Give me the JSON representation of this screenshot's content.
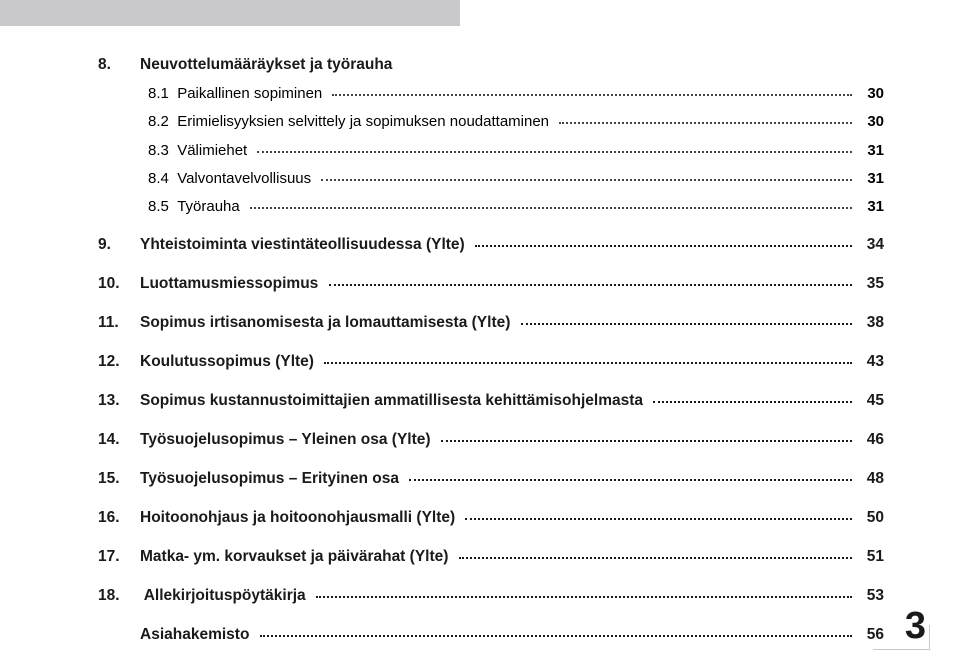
{
  "toc": [
    {
      "type": "head",
      "num": "8.",
      "title": "Neuvottelumääräykset ja työrauha",
      "page": ""
    },
    {
      "type": "sub",
      "num": "8.1",
      "title": "Paikallinen sopiminen",
      "page": "30"
    },
    {
      "type": "sub",
      "num": "8.2",
      "title": "Erimielisyyksien selvittely ja sopimuksen noudattaminen",
      "page": "30"
    },
    {
      "type": "sub",
      "num": "8.3",
      "title": "Välimiehet",
      "page": "31"
    },
    {
      "type": "sub",
      "num": "8.4",
      "title": "Valvontavelvollisuus",
      "page": "31"
    },
    {
      "type": "sub",
      "num": "8.5",
      "title": "Työrauha",
      "page": "31"
    },
    {
      "type": "gap"
    },
    {
      "type": "head",
      "num": "9.",
      "title": "Yhteistoiminta viestintäteollisuudessa (Ylte)",
      "page": "34"
    },
    {
      "type": "gap"
    },
    {
      "type": "head",
      "num": "10.",
      "title": "Luottamusmiessopimus",
      "page": "35"
    },
    {
      "type": "gap"
    },
    {
      "type": "head",
      "num": "11.",
      "title": "Sopimus irtisanomisesta ja lomauttamisesta (Ylte)",
      "page": "38"
    },
    {
      "type": "gap"
    },
    {
      "type": "head",
      "num": "12.",
      "title": "Koulutussopimus (Ylte)",
      "page": "43"
    },
    {
      "type": "gap"
    },
    {
      "type": "head",
      "num": "13.",
      "title": "Sopimus kustannustoimittajien ammatillisesta kehittämisohjelmasta",
      "page": "45"
    },
    {
      "type": "gap"
    },
    {
      "type": "head",
      "num": "14.",
      "title": "Työsuojelusopimus – Yleinen osa (Ylte)",
      "page": "46"
    },
    {
      "type": "gap"
    },
    {
      "type": "head",
      "num": "15.",
      "title": "Työsuojelusopimus – Erityinen osa",
      "page": "48"
    },
    {
      "type": "gap"
    },
    {
      "type": "head",
      "num": "16.",
      "title": "Hoitoonohjaus ja hoitoonohjausmalli (Ylte)",
      "page": "50"
    },
    {
      "type": "gap"
    },
    {
      "type": "head",
      "num": "17.",
      "title": "Matka- ym. korvaukset ja päivärahat (Ylte)",
      "page": "51"
    },
    {
      "type": "gap"
    },
    {
      "type": "head",
      "num": "18.",
      "title": " Allekirjoituspöytäkirja",
      "page": "53"
    },
    {
      "type": "gap"
    },
    {
      "type": "head",
      "num": "",
      "title": "Asiahakemisto",
      "page": "56"
    }
  ],
  "page_number": "3",
  "colors": {
    "bar": "#c9c9cc",
    "text": "#1a1a1a",
    "background": "#ffffff"
  }
}
